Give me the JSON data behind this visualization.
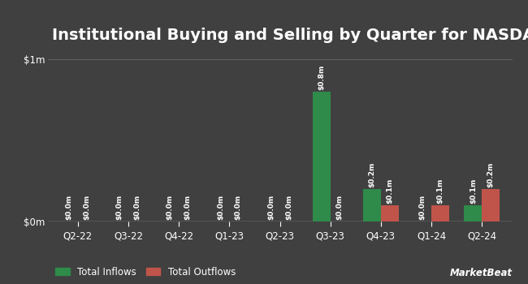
{
  "title": "Institutional Buying and Selling by Quarter for NASDAQ:TLSIW",
  "quarters": [
    "Q2-22",
    "Q3-22",
    "Q4-22",
    "Q1-23",
    "Q2-23",
    "Q3-23",
    "Q4-23",
    "Q1-24",
    "Q2-24"
  ],
  "inflows": [
    0.0,
    0.0,
    0.0,
    0.0,
    0.0,
    0.8,
    0.2,
    0.0,
    0.1
  ],
  "outflows": [
    0.0,
    0.0,
    0.0,
    0.0,
    0.0,
    0.0,
    0.1,
    0.1,
    0.2
  ],
  "inflow_labels": [
    "$0.0m",
    "$0.0m",
    "$0.0m",
    "$0.0m",
    "$0.0m",
    "$0.8m",
    "$0.2m",
    "$0.0m",
    "$0.1m"
  ],
  "outflow_labels": [
    "$0.0m",
    "$0.0m",
    "$0.0m",
    "$0.0m",
    "$0.0m",
    "$0.0m",
    "$0.1m",
    "$0.1m",
    "$0.2m"
  ],
  "inflow_color": "#2e8b4a",
  "outflow_color": "#c0544a",
  "bg_color": "#404040",
  "text_color": "#ffffff",
  "grid_color": "#606060",
  "ylim": [
    0,
    1.05
  ],
  "yticks": [
    0.0,
    1.0
  ],
  "ytick_labels": [
    "$0m",
    "$1m"
  ],
  "bar_width": 0.35,
  "legend_inflow": "Total Inflows",
  "legend_outflow": "Total Outflows",
  "title_fontsize": 14,
  "label_fontsize": 6.5,
  "tick_fontsize": 8.5,
  "legend_fontsize": 8.5
}
